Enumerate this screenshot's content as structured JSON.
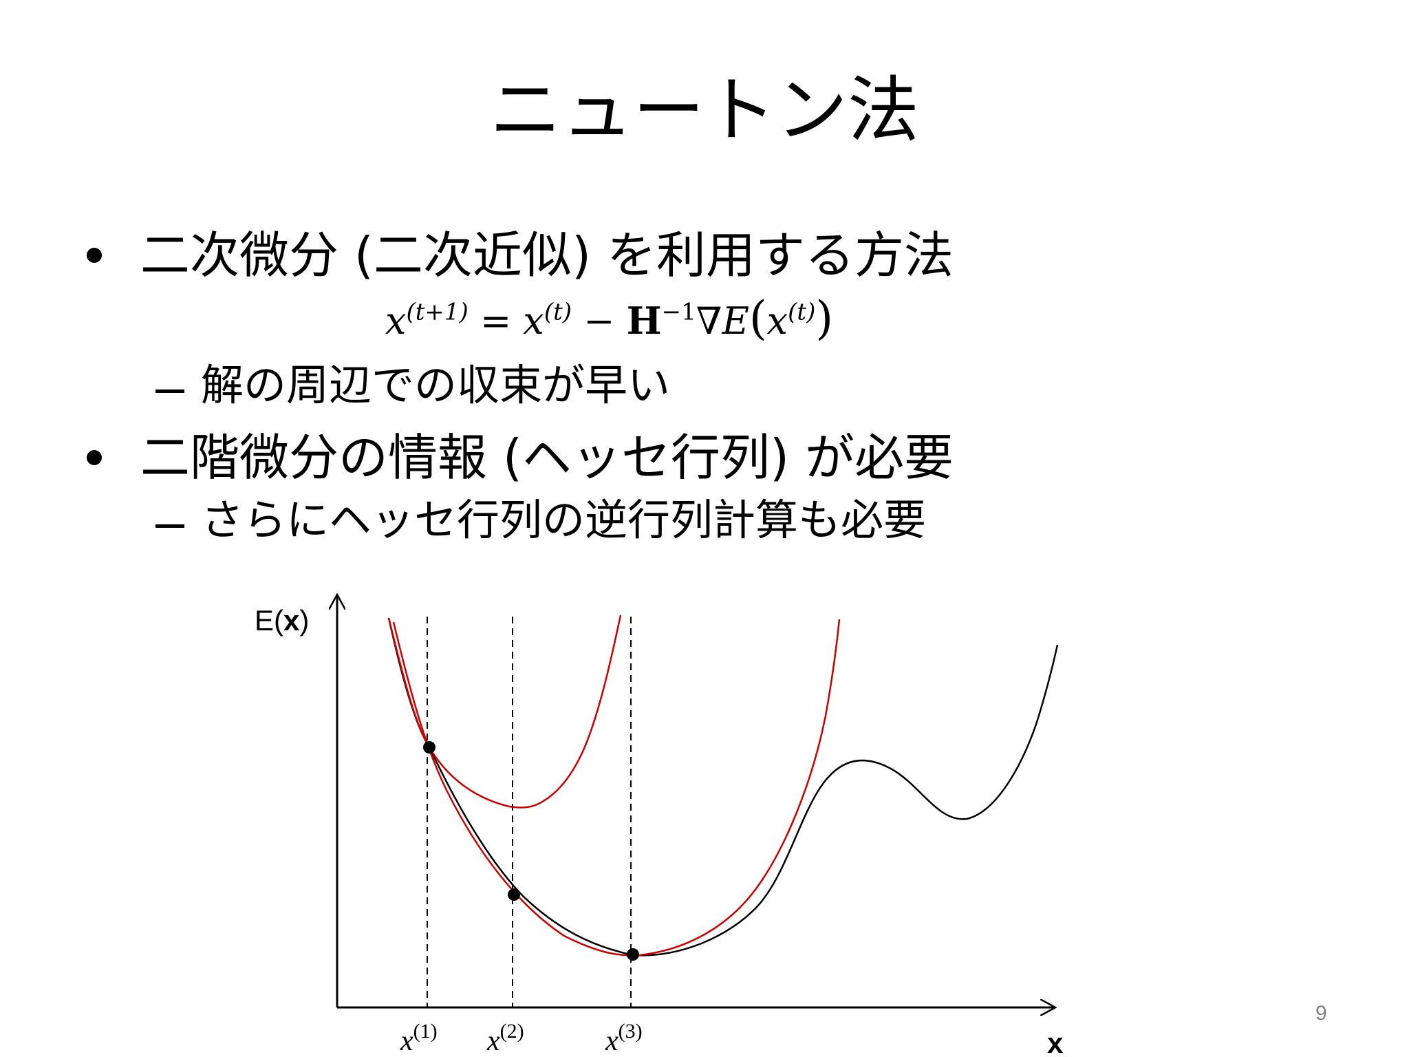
{
  "title": "ニュートン法",
  "bullets": [
    {
      "text": "二次微分 (二次近似) を利用する方法"
    },
    {
      "text": "二階微分の情報 (ヘッセ行列) が必要"
    }
  ],
  "sub_items": [
    {
      "text": "解の周辺での収束が早い"
    },
    {
      "text": "さらにヘッセ行列の逆行列計算も必要"
    }
  ],
  "formula": {
    "lhs_var": "x",
    "lhs_sup": "(t+1)",
    "equals": "=",
    "rhs_var": "x",
    "rhs_sup": "(t)",
    "minus": "−",
    "hessian": "H",
    "hessian_sup": "−1",
    "grad": "∇E",
    "arg_var": "x",
    "arg_sup": "(t)"
  },
  "graph": {
    "y_axis_label_prefix": "E(",
    "y_axis_label_bold": "x",
    "y_axis_label_suffix": ")",
    "x_axis_label": "x",
    "iterate_var": "x",
    "iterates": [
      "(1)",
      "(2)",
      "(3)"
    ],
    "curve_color": "#000000",
    "approx_color": "#cc0000"
  },
  "page_number": "9"
}
